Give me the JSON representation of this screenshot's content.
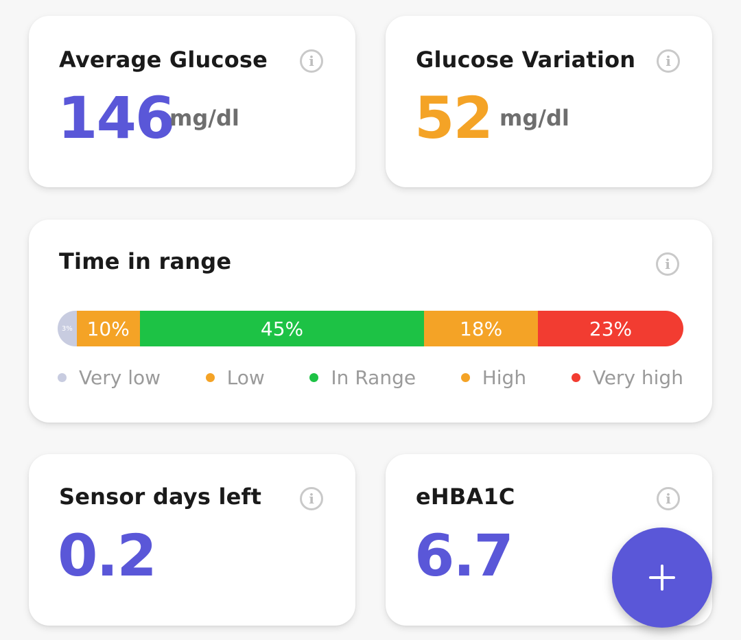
{
  "average_glucose": {
    "title": "Average Glucose",
    "value": "146",
    "unit": "mg/dl",
    "color": "#5a57d8"
  },
  "glucose_variation": {
    "title": "Glucose Variation",
    "value": "52",
    "unit": "mg/dl",
    "color": "#f4a326"
  },
  "time_in_range": {
    "title": "Time in range",
    "segments": [
      {
        "key": "very_low",
        "label": "3%",
        "percent": 3,
        "color": "#c8cce0"
      },
      {
        "key": "low",
        "label": "10%",
        "percent": 10,
        "color": "#f4a326"
      },
      {
        "key": "in_range",
        "label": "45%",
        "percent": 45,
        "color": "#1dc245"
      },
      {
        "key": "high",
        "label": "18%",
        "percent": 18,
        "color": "#f4a326"
      },
      {
        "key": "very_high",
        "label": "23%",
        "percent": 23,
        "color": "#f23c31"
      }
    ],
    "legend": [
      {
        "label": "Very low",
        "color": "#c8cce0"
      },
      {
        "label": "Low",
        "color": "#f4a326"
      },
      {
        "label": "In Range",
        "color": "#1dc245"
      },
      {
        "label": "High",
        "color": "#f4a326"
      },
      {
        "label": "Very high",
        "color": "#f23c31"
      }
    ]
  },
  "sensor_days_left": {
    "title": "Sensor days left",
    "value": "0.2",
    "color": "#5a57d8"
  },
  "ehba1c": {
    "title": "eHBA1C",
    "value": "6.7",
    "color": "#5a57d8"
  },
  "info_glyph": "i",
  "icons": {
    "info": "info-circle-icon",
    "add": "plus-icon"
  },
  "fab_color": "#5a57d8"
}
